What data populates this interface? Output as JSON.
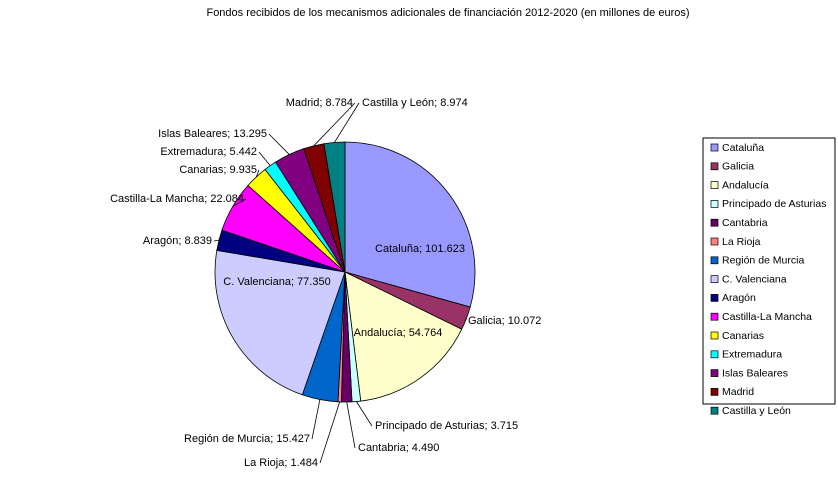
{
  "chart_data": {
    "type": "pie",
    "title": "Fondos recibidos de los mecanismos adicionales de financiación 2012-2020 (en millones de euros)",
    "categories": [
      "Cataluña",
      "Galicia",
      "Andalucía",
      "Principado de Asturias",
      "Cantabria",
      "La Rioja",
      "Región de Murcia",
      "C. Valenciana",
      "Aragón",
      "Castilla-La Mancha",
      "Canarias",
      "Extremadura",
      "Islas Baleares",
      "Madrid",
      "Castilla y León"
    ],
    "values": [
      101.623,
      10.072,
      54.764,
      3.715,
      4.49,
      1.484,
      15.427,
      77.35,
      8.839,
      22.084,
      9.935,
      5.442,
      13.295,
      8.784,
      8.974
    ],
    "value_labels": [
      "Cataluña; 101.623",
      "Galicia; 10.072",
      "Andalucía; 54.764",
      "Principado de Asturias; 3.715",
      "Cantabria; 4.490",
      "La Rioja; 1.484",
      "Región de Murcia; 15.427",
      "C. Valenciana; 77.350",
      "Aragón; 8.839",
      "Castilla-La Mancha; 22.084",
      "Canarias; 9.935",
      "Extremadura; 5.442",
      "Islas Baleares; 13.295",
      "Madrid; 8.784",
      "Castilla y León; 8.974"
    ],
    "colors": [
      "#9999ff",
      "#993366",
      "#ffffcc",
      "#ccffff",
      "#660066",
      "#ff8080",
      "#0066cc",
      "#ccccff",
      "#000080",
      "#ff00ff",
      "#ffff00",
      "#00ffff",
      "#800080",
      "#800000",
      "#008080"
    ],
    "legend": "right"
  }
}
